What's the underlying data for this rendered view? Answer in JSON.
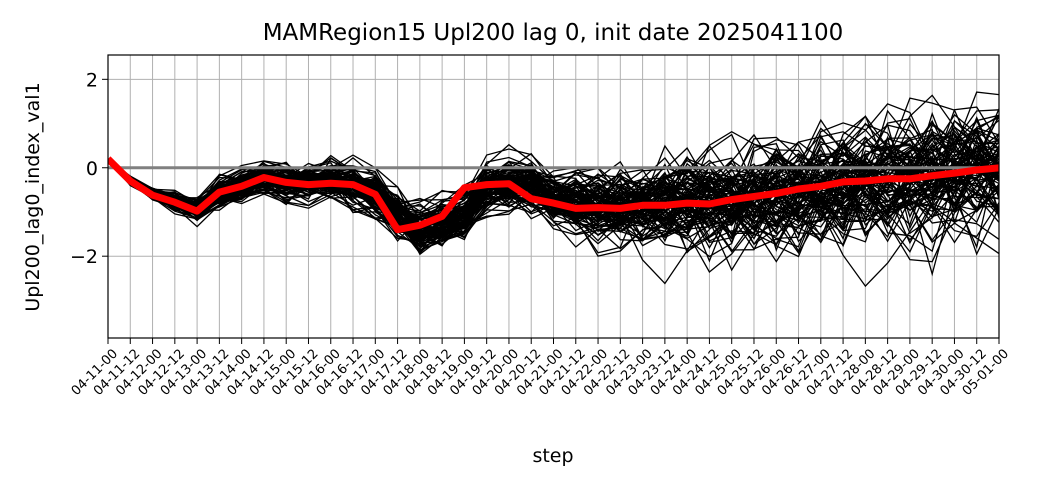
{
  "chart_data": {
    "type": "line",
    "title": "MAMRegion15 Upl200 lag 0, init date 2025041100",
    "xlabel": "step",
    "ylabel": "Upl200_lag0_index_val1",
    "categories": [
      "04-11-00",
      "04-11-12",
      "04-12-00",
      "04-12-12",
      "04-13-00",
      "04-13-12",
      "04-14-00",
      "04-14-12",
      "04-15-00",
      "04-15-12",
      "04-16-00",
      "04-16-12",
      "04-17-00",
      "04-17-12",
      "04-18-00",
      "04-18-12",
      "04-19-00",
      "04-19-12",
      "04-20-00",
      "04-20-12",
      "04-21-00",
      "04-21-12",
      "04-22-00",
      "04-22-12",
      "04-23-00",
      "04-23-12",
      "04-24-00",
      "04-24-12",
      "04-25-00",
      "04-25-12",
      "04-26-00",
      "04-26-12",
      "04-27-00",
      "04-27-12",
      "04-28-00",
      "04-28-12",
      "04-29-00",
      "04-29-12",
      "04-30-00",
      "04-30-12",
      "05-01-00"
    ],
    "ylim": [
      -3.85,
      2.55
    ],
    "yticks": [
      -2,
      0,
      2
    ],
    "grid": true,
    "ensemble": {
      "member_color": "#000000",
      "member_count": 100,
      "mean_path": [
        0.2,
        -0.3,
        -0.6,
        -0.75,
        -0.95,
        -0.55,
        -0.4,
        -0.22,
        -0.33,
        -0.38,
        -0.35,
        -0.38,
        -0.6,
        -1.05,
        -1.4,
        -1.3,
        -1.1,
        -0.45,
        -0.38,
        -0.35,
        -0.7,
        -0.8,
        -0.9,
        -0.92,
        -0.92,
        -0.85,
        -0.85,
        -0.8,
        -0.78,
        -0.72,
        -0.65,
        -0.58,
        -0.48,
        -0.42,
        -0.35,
        -0.3,
        -0.25,
        -0.18,
        -0.1,
        -0.05,
        0.0
      ],
      "spread": [
        0.0,
        0.1,
        0.12,
        0.18,
        0.25,
        0.3,
        0.3,
        0.35,
        0.35,
        0.35,
        0.4,
        0.45,
        0.5,
        0.5,
        0.5,
        0.45,
        0.45,
        0.5,
        0.5,
        0.55,
        0.6,
        0.65,
        0.75,
        0.8,
        0.85,
        0.9,
        0.95,
        1.0,
        1.05,
        1.1,
        1.1,
        1.15,
        1.15,
        1.2,
        1.2,
        1.25,
        1.25,
        1.25,
        1.3,
        1.3,
        1.3
      ]
    },
    "series": [
      {
        "color": "#ff0000",
        "values": [
          0.2,
          -0.3,
          -0.62,
          -0.78,
          -0.98,
          -0.55,
          -0.42,
          -0.22,
          -0.33,
          -0.38,
          -0.35,
          -0.38,
          -0.6,
          -1.4,
          -1.3,
          -1.1,
          -0.45,
          -0.38,
          -0.36,
          -0.7,
          -0.8,
          -0.92,
          -0.9,
          -0.92,
          -0.85,
          -0.85,
          -0.8,
          -0.82,
          -0.72,
          -0.65,
          -0.58,
          -0.48,
          -0.42,
          -0.32,
          -0.3,
          -0.25,
          -0.25,
          -0.18,
          -0.12,
          -0.05,
          0.0
        ]
      },
      {
        "color": "#808080",
        "values": [
          0,
          0,
          0,
          0,
          0,
          0,
          0,
          0,
          0,
          0,
          0,
          0,
          0,
          0,
          0,
          0,
          0,
          0,
          0,
          0,
          0,
          0,
          0,
          0,
          0,
          0,
          0,
          0,
          0,
          0,
          0,
          0,
          0,
          0,
          0,
          0,
          0,
          0,
          0,
          0,
          0
        ]
      }
    ]
  }
}
